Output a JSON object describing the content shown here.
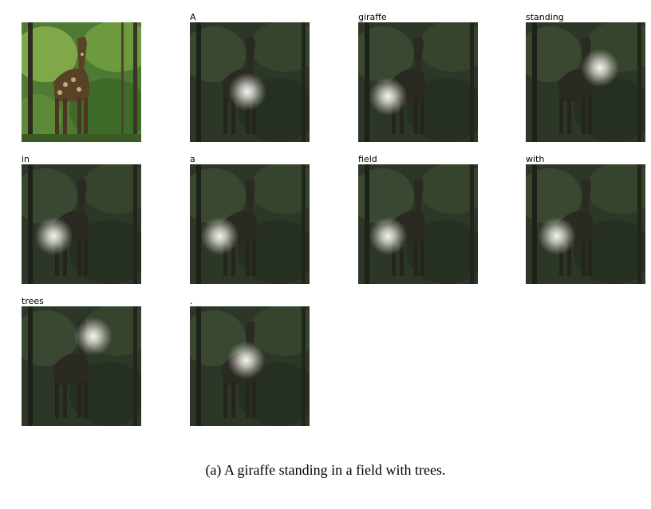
{
  "figure": {
    "caption": "(a) A giraffe standing in a field with trees.",
    "original_image": {
      "icon": "giraffe-photo-icon"
    },
    "attention_frames": [
      {
        "word": "A",
        "attention_focus": [
          0.48,
          0.58
        ]
      },
      {
        "word": "giraffe",
        "attention_focus": [
          0.25,
          0.62
        ]
      },
      {
        "word": "standing",
        "attention_focus": [
          0.62,
          0.38
        ]
      },
      {
        "word": "in",
        "attention_focus": [
          0.27,
          0.6
        ]
      },
      {
        "word": "a",
        "attention_focus": [
          0.25,
          0.6
        ]
      },
      {
        "word": "field",
        "attention_focus": [
          0.25,
          0.6
        ]
      },
      {
        "word": "with",
        "attention_focus": [
          0.26,
          0.6
        ]
      },
      {
        "word": "trees",
        "attention_focus": [
          0.6,
          0.25
        ]
      },
      {
        "word": ".",
        "attention_focus": [
          0.47,
          0.45
        ]
      }
    ]
  }
}
